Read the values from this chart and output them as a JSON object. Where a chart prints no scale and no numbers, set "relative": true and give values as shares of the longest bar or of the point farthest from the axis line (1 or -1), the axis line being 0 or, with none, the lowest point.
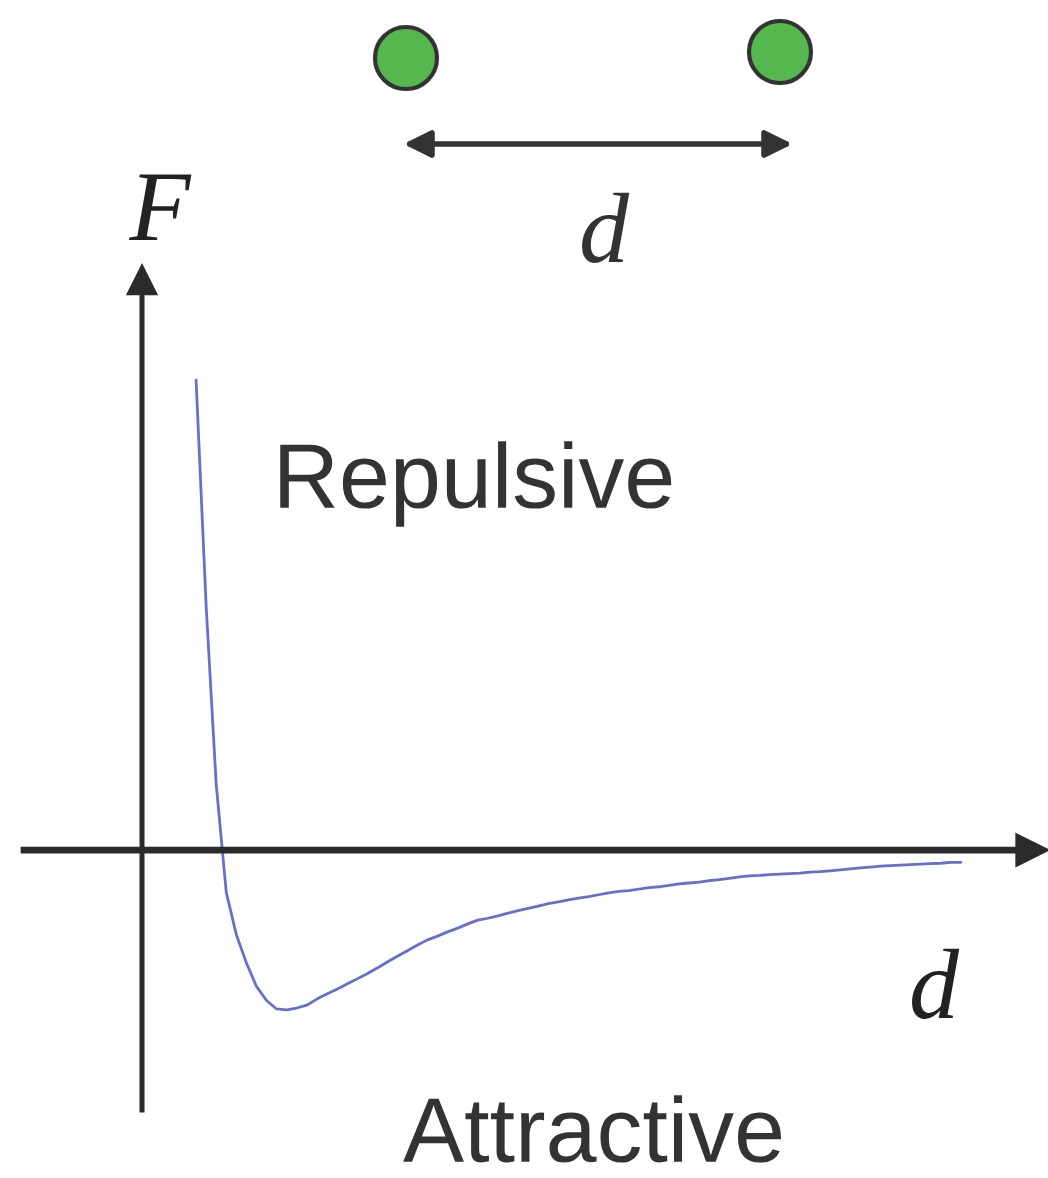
{
  "chart_data": {
    "type": "line",
    "relative": true,
    "xlabel": "d",
    "ylabel": "F",
    "line_style": "solid",
    "annotations": [
      "Repulsive",
      "Attractive",
      "d"
    ],
    "categories": [
      null,
      null,
      null,
      null,
      null,
      null,
      null,
      null,
      null,
      null,
      null,
      null,
      null,
      null,
      null,
      null,
      null,
      null,
      null,
      null,
      null,
      null,
      null,
      null,
      null,
      null,
      null,
      null,
      null,
      null,
      null,
      null,
      null,
      null,
      null,
      null,
      null,
      null,
      null,
      null,
      null,
      null,
      null,
      null,
      null,
      null,
      null,
      null,
      null,
      null,
      null,
      null,
      null,
      null,
      null,
      null,
      null,
      null,
      null,
      null,
      null,
      null,
      null,
      null,
      null,
      null,
      null,
      null,
      null,
      null,
      null,
      null,
      null,
      null,
      null,
      null,
      null
    ],
    "series": [
      {
        "color": "#6670cc",
        "values": [
          1.0,
          0.52,
          0.14,
          -0.09,
          -0.18,
          -0.24,
          -0.29,
          -0.32,
          -0.338,
          -0.34,
          -0.336,
          -0.33,
          -0.317,
          -0.306,
          -0.296,
          -0.285,
          -0.274,
          -0.263,
          -0.251,
          -0.238,
          -0.226,
          -0.214,
          -0.202,
          -0.191,
          -0.183,
          -0.174,
          -0.166,
          -0.157,
          -0.149,
          -0.145,
          -0.14,
          -0.134,
          -0.129,
          -0.124,
          -0.119,
          -0.114,
          -0.11,
          -0.106,
          -0.102,
          -0.099,
          -0.095,
          -0.091,
          -0.088,
          -0.086,
          -0.083,
          -0.08,
          -0.078,
          -0.075,
          -0.072,
          -0.07,
          -0.068,
          -0.065,
          -0.063,
          -0.06,
          -0.057,
          -0.055,
          -0.054,
          -0.052,
          -0.051,
          -0.05,
          -0.049,
          -0.047,
          -0.046,
          -0.044,
          -0.042,
          -0.04,
          -0.038,
          -0.036,
          -0.034,
          -0.033,
          -0.032,
          -0.031,
          -0.03,
          -0.029,
          -0.028,
          -0.026,
          -0.026
        ]
      }
    ]
  }
}
